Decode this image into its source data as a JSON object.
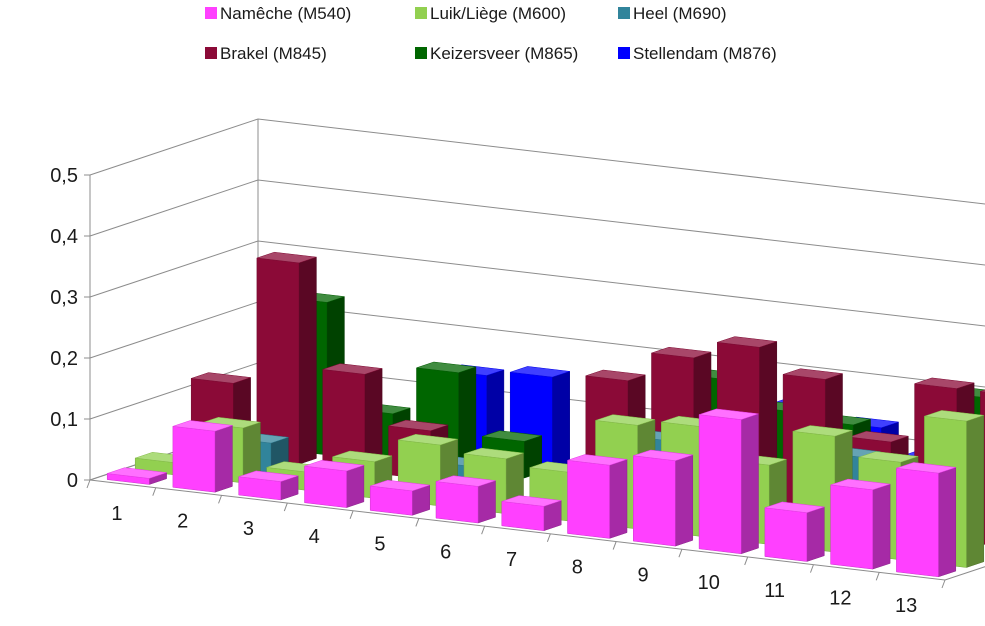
{
  "chart_data": {
    "type": "bar",
    "three_d": true,
    "title": "",
    "xlabel": "",
    "ylabel": "",
    "ylim": [
      0,
      0.5
    ],
    "y_ticks": [
      "0",
      "0,1",
      "0,2",
      "0,3",
      "0,4",
      "0,5"
    ],
    "categories": [
      "1",
      "2",
      "3",
      "4",
      "5",
      "6",
      "7",
      "8",
      "9",
      "10",
      "11",
      "12",
      "13"
    ],
    "grid": true,
    "legend_position": "top",
    "series": [
      {
        "name": "Namêche (M540)",
        "color": "#ff40ff",
        "values": [
          0.01,
          0.1,
          0.03,
          0.06,
          0.04,
          0.06,
          0.04,
          0.12,
          0.14,
          0.22,
          0.08,
          0.13,
          0.17
        ]
      },
      {
        "name": "Luik/Liège (M600)",
        "color": "#92d050",
        "values": [
          0.02,
          0.09,
          0.03,
          0.06,
          0.1,
          0.09,
          0.08,
          0.17,
          0.18,
          0.13,
          0.19,
          0.16,
          0.24
        ]
      },
      {
        "name": "Heel (M690)",
        "color": "#31849b",
        "values": [
          0.0,
          0.05,
          0.0,
          0.0,
          0.05,
          0.0,
          0.0,
          0.13,
          0.0,
          0.0,
          0.14,
          0.0,
          0.0
        ]
      },
      {
        "name": "Brakel (M845)",
        "color": "#8b0a37",
        "values": [
          0.12,
          0.33,
          0.16,
          0.08,
          0.02,
          0.0,
          0.2,
          0.25,
          0.28,
          0.24,
          0.15,
          0.25,
          0.25
        ]
      },
      {
        "name": "Keizersveer (M865)",
        "color": "#006600",
        "values": [
          0.0,
          0.25,
          0.08,
          0.16,
          0.06,
          0.0,
          0.09,
          0.2,
          0.16,
          0.15,
          0.06,
          0.22,
          0.13
        ]
      },
      {
        "name": "Stellendam (M876)",
        "color": "#0000ff",
        "values": [
          0.0,
          0.0,
          0.0,
          0.14,
          0.15,
          0.0,
          0.04,
          0.0,
          0.15,
          0.13,
          0.09,
          0.14,
          0.09
        ]
      }
    ]
  }
}
